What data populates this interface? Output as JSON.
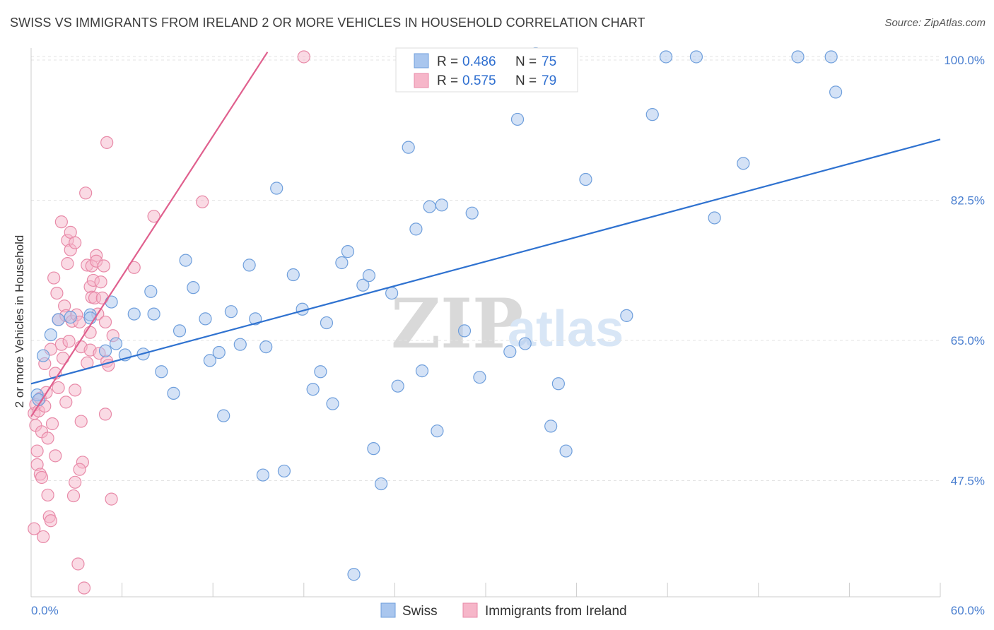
{
  "title": "SWISS VS IMMIGRANTS FROM IRELAND 2 OR MORE VEHICLES IN HOUSEHOLD CORRELATION CHART",
  "source": "Source: ZipAtlas.com",
  "watermark": {
    "zip": "ZIP",
    "atlas": "atlas"
  },
  "colors": {
    "swiss_fill": "#a9c6ee",
    "swiss_stroke": "#6f9fdc",
    "swiss_line": "#2f72d0",
    "ireland_fill": "#f6b6c9",
    "ireland_stroke": "#e88aa8",
    "ireland_line": "#e0608e",
    "grid": "#e3e3e3",
    "tick_label": "#4a7fd0"
  },
  "legend": {
    "r_label": "R =",
    "n_label": "N =",
    "swiss": {
      "r": "0.486",
      "n": "75"
    },
    "ireland": {
      "r": "0.575",
      "n": "79"
    }
  },
  "chart_data": {
    "type": "scatter",
    "xlabel": "",
    "ylabel": "2 or more Vehicles in Household",
    "xlim": [
      0,
      60
    ],
    "ylim": [
      33,
      101.5
    ],
    "x_tick_labels": [
      {
        "value": 0,
        "label": "0.0%"
      },
      {
        "value": 60,
        "label": "60.0%"
      }
    ],
    "x_minor_ticks": [
      6,
      12,
      18,
      24,
      30,
      36,
      42,
      48,
      54,
      60
    ],
    "y_ticks": [
      {
        "value": 47.5,
        "label": "47.5%"
      },
      {
        "value": 65.0,
        "label": "65.0%"
      },
      {
        "value": 82.5,
        "label": "82.5%"
      },
      {
        "value": 100.0,
        "label": "100.0%"
      }
    ],
    "grid": true,
    "legend_position": "top-center",
    "series": [
      {
        "name": "Swiss",
        "trend": {
          "x": [
            0,
            60
          ],
          "y": [
            59.6,
            90.1
          ]
        },
        "points": [
          [
            0.4,
            58.2
          ],
          [
            0.5,
            57.6
          ],
          [
            0.8,
            63.1
          ],
          [
            1.3,
            65.7
          ],
          [
            1.8,
            67.6
          ],
          [
            2.6,
            67.9
          ],
          [
            3.9,
            68.2
          ],
          [
            3.9,
            67.8
          ],
          [
            4.9,
            63.7
          ],
          [
            5.3,
            69.8
          ],
          [
            5.6,
            64.6
          ],
          [
            6.2,
            63.2
          ],
          [
            6.8,
            68.3
          ],
          [
            7.4,
            63.3
          ],
          [
            7.9,
            71.1
          ],
          [
            8.1,
            68.3
          ],
          [
            8.6,
            61.1
          ],
          [
            9.4,
            58.4
          ],
          [
            9.8,
            66.2
          ],
          [
            10.2,
            75.0
          ],
          [
            10.7,
            71.6
          ],
          [
            11.5,
            67.7
          ],
          [
            11.8,
            62.5
          ],
          [
            12.4,
            63.5
          ],
          [
            12.7,
            55.6
          ],
          [
            13.2,
            68.6
          ],
          [
            13.8,
            64.5
          ],
          [
            14.4,
            74.4
          ],
          [
            14.8,
            67.7
          ],
          [
            15.3,
            48.2
          ],
          [
            15.5,
            64.2
          ],
          [
            16.2,
            84.0
          ],
          [
            16.7,
            48.7
          ],
          [
            17.3,
            73.2
          ],
          [
            17.9,
            68.9
          ],
          [
            18.6,
            58.9
          ],
          [
            19.1,
            61.1
          ],
          [
            19.5,
            67.2
          ],
          [
            19.9,
            57.1
          ],
          [
            20.5,
            74.7
          ],
          [
            20.9,
            76.1
          ],
          [
            21.3,
            35.8
          ],
          [
            21.9,
            71.9
          ],
          [
            22.3,
            73.1
          ],
          [
            22.6,
            51.5
          ],
          [
            23.1,
            47.1
          ],
          [
            23.8,
            70.9
          ],
          [
            24.2,
            59.3
          ],
          [
            24.9,
            89.1
          ],
          [
            25.4,
            78.9
          ],
          [
            25.8,
            61.2
          ],
          [
            26.3,
            81.7
          ],
          [
            26.8,
            53.7
          ],
          [
            27.1,
            81.9
          ],
          [
            28.6,
            66.2
          ],
          [
            29.1,
            80.9
          ],
          [
            29.6,
            60.4
          ],
          [
            30.4,
            100.3
          ],
          [
            31.6,
            63.6
          ],
          [
            32.1,
            92.6
          ],
          [
            32.6,
            64.6
          ],
          [
            33.3,
            100.8
          ],
          [
            34.3,
            54.3
          ],
          [
            34.8,
            59.6
          ],
          [
            35.3,
            51.2
          ],
          [
            36.6,
            85.1
          ],
          [
            39.3,
            68.1
          ],
          [
            41.0,
            93.2
          ],
          [
            41.9,
            100.4
          ],
          [
            43.9,
            100.4
          ],
          [
            45.1,
            80.3
          ],
          [
            47.0,
            87.1
          ],
          [
            50.6,
            100.4
          ],
          [
            52.8,
            100.4
          ],
          [
            53.1,
            96.0
          ]
        ]
      },
      {
        "name": "Immigrants from Ireland",
        "trend": {
          "x": [
            0,
            15.6
          ],
          "y": [
            55.5,
            101.0
          ]
        },
        "points": [
          [
            0.2,
            41.5
          ],
          [
            0.2,
            55.9
          ],
          [
            0.3,
            57.0
          ],
          [
            0.3,
            54.4
          ],
          [
            0.4,
            51.2
          ],
          [
            0.4,
            49.5
          ],
          [
            0.5,
            56.2
          ],
          [
            0.6,
            57.8
          ],
          [
            0.6,
            48.3
          ],
          [
            0.7,
            47.9
          ],
          [
            0.7,
            53.6
          ],
          [
            0.8,
            40.5
          ],
          [
            0.9,
            56.8
          ],
          [
            0.9,
            62.1
          ],
          [
            1.0,
            58.5
          ],
          [
            1.1,
            45.7
          ],
          [
            1.1,
            52.8
          ],
          [
            1.2,
            43.0
          ],
          [
            1.3,
            63.9
          ],
          [
            1.3,
            42.5
          ],
          [
            1.4,
            54.6
          ],
          [
            1.5,
            72.8
          ],
          [
            1.6,
            60.9
          ],
          [
            1.7,
            70.9
          ],
          [
            1.8,
            67.6
          ],
          [
            1.8,
            59.1
          ],
          [
            2.0,
            64.5
          ],
          [
            2.0,
            79.8
          ],
          [
            2.1,
            62.8
          ],
          [
            2.2,
            69.3
          ],
          [
            2.3,
            68.1
          ],
          [
            2.3,
            57.3
          ],
          [
            2.4,
            77.5
          ],
          [
            2.4,
            74.6
          ],
          [
            2.5,
            64.9
          ],
          [
            2.6,
            76.3
          ],
          [
            2.6,
            78.5
          ],
          [
            2.7,
            67.4
          ],
          [
            2.8,
            45.6
          ],
          [
            2.9,
            58.8
          ],
          [
            2.9,
            77.2
          ],
          [
            3.0,
            68.2
          ],
          [
            3.1,
            37.1
          ],
          [
            3.2,
            67.3
          ],
          [
            3.3,
            64.2
          ],
          [
            3.3,
            54.9
          ],
          [
            3.4,
            49.8
          ],
          [
            3.5,
            34.1
          ],
          [
            3.6,
            83.4
          ],
          [
            3.7,
            62.2
          ],
          [
            3.7,
            74.4
          ],
          [
            3.9,
            63.8
          ],
          [
            3.9,
            66.0
          ],
          [
            3.9,
            71.7
          ],
          [
            4.0,
            70.4
          ],
          [
            4.0,
            74.3
          ],
          [
            4.1,
            72.5
          ],
          [
            4.2,
            70.3
          ],
          [
            4.3,
            75.6
          ],
          [
            4.3,
            74.9
          ],
          [
            4.4,
            68.3
          ],
          [
            4.5,
            63.4
          ],
          [
            4.6,
            72.3
          ],
          [
            4.7,
            70.3
          ],
          [
            4.8,
            74.3
          ],
          [
            4.9,
            67.3
          ],
          [
            5.0,
            89.7
          ],
          [
            5.0,
            62.4
          ],
          [
            5.1,
            61.9
          ],
          [
            5.3,
            45.2
          ],
          [
            6.8,
            74.1
          ],
          [
            5.4,
            65.6
          ],
          [
            4.9,
            55.8
          ],
          [
            8.1,
            80.5
          ],
          [
            11.3,
            82.3
          ],
          [
            18.0,
            100.4
          ],
          [
            3.2,
            48.9
          ],
          [
            1.6,
            50.6
          ],
          [
            2.9,
            47.3
          ]
        ]
      }
    ]
  }
}
